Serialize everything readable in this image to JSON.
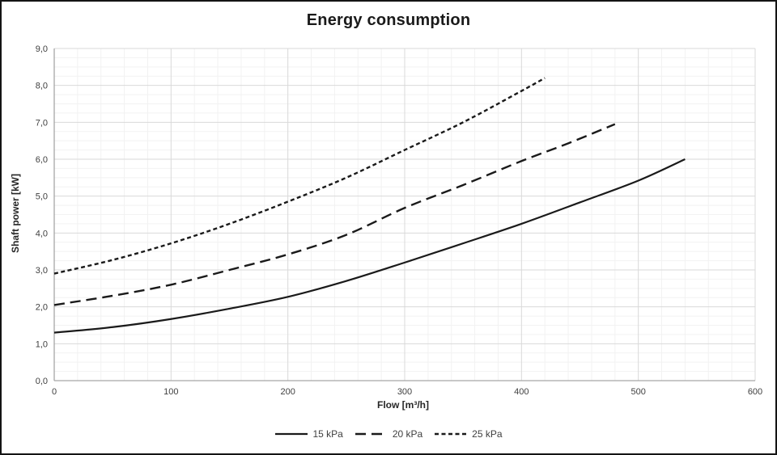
{
  "figure": {
    "background": "#ffffff",
    "border_color": "#141414"
  },
  "chart_data": {
    "type": "line",
    "title": "Energy consumption",
    "xlabel": "Flow [m³/h]",
    "ylabel": "Shaft power [kW]",
    "xlim": [
      0,
      600
    ],
    "ylim": [
      0,
      9
    ],
    "x_major_step": 100,
    "x_minor_step": 20,
    "y_major_step": 1,
    "y_minor_step": 0.25,
    "x_tick_labels": [
      "0",
      "100",
      "200",
      "300",
      "400",
      "500",
      "600"
    ],
    "y_tick_labels": [
      "0,0",
      "1,0",
      "2,0",
      "3,0",
      "4,0",
      "5,0",
      "6,0",
      "7,0",
      "8,0",
      "9,0"
    ],
    "grid": {
      "on": true,
      "major_color": "#d9d9d9",
      "minor_color": "#f2f2f2"
    },
    "axis_line_color": "#a6a6a6",
    "line_color": "#1a1a1a",
    "legend_position": "bottom",
    "series": [
      {
        "name": "15 kPa",
        "dash": "solid",
        "points": [
          [
            0,
            1.3
          ],
          [
            50,
            1.45
          ],
          [
            100,
            1.67
          ],
          [
            150,
            1.95
          ],
          [
            200,
            2.27
          ],
          [
            250,
            2.7
          ],
          [
            300,
            3.2
          ],
          [
            350,
            3.72
          ],
          [
            400,
            4.25
          ],
          [
            450,
            4.83
          ],
          [
            500,
            5.42
          ],
          [
            540,
            6.0
          ]
        ]
      },
      {
        "name": "20 kPa",
        "dash": "long-dash",
        "points": [
          [
            0,
            2.05
          ],
          [
            50,
            2.3
          ],
          [
            100,
            2.6
          ],
          [
            150,
            3.0
          ],
          [
            200,
            3.42
          ],
          [
            250,
            3.95
          ],
          [
            300,
            4.68
          ],
          [
            350,
            5.3
          ],
          [
            400,
            5.95
          ],
          [
            440,
            6.43
          ],
          [
            480,
            6.95
          ]
        ]
      },
      {
        "name": "25 kPa",
        "dash": "short-dash",
        "points": [
          [
            0,
            2.9
          ],
          [
            50,
            3.27
          ],
          [
            100,
            3.72
          ],
          [
            150,
            4.25
          ],
          [
            200,
            4.85
          ],
          [
            250,
            5.5
          ],
          [
            300,
            6.25
          ],
          [
            350,
            7.0
          ],
          [
            400,
            7.85
          ],
          [
            420,
            8.2
          ]
        ]
      }
    ]
  }
}
